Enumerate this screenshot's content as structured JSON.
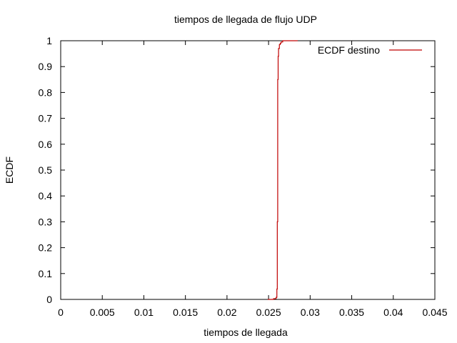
{
  "chart_data": {
    "type": "line",
    "title": "tiempos de llegada de flujo UDP",
    "xlabel": "tiempos de llegada",
    "ylabel": "ECDF",
    "xlim": [
      0,
      0.045
    ],
    "ylim": [
      0,
      1
    ],
    "xticks": [
      "0",
      "0.005",
      "0.01",
      "0.015",
      "0.02",
      "0.025",
      "0.03",
      "0.035",
      "0.04",
      "0.045"
    ],
    "xtick_values": [
      0,
      0.005,
      0.01,
      0.015,
      0.02,
      0.025,
      0.03,
      0.035,
      0.04,
      0.045
    ],
    "yticks": [
      "0",
      "0.1",
      "0.2",
      "0.3",
      "0.4",
      "0.5",
      "0.6",
      "0.7",
      "0.8",
      "0.9",
      "1"
    ],
    "ytick_values": [
      0,
      0.1,
      0.2,
      0.3,
      0.4,
      0.5,
      0.6,
      0.7,
      0.8,
      0.9,
      1
    ],
    "grid": false,
    "legend_position": "top-right",
    "series": [
      {
        "name": "ECDF destino",
        "color": "#c00000",
        "x": [
          0.0249,
          0.0256,
          0.0259,
          0.026,
          0.026,
          0.02605,
          0.02605,
          0.0261,
          0.0261,
          0.02615,
          0.02615,
          0.0262,
          0.0262,
          0.0263,
          0.0263,
          0.0264,
          0.0264,
          0.0265,
          0.0265,
          0.0267,
          0.0267,
          0.0285
        ],
        "y": [
          0.0,
          0.003,
          0.008,
          0.015,
          0.04,
          0.05,
          0.3,
          0.6,
          0.85,
          0.9,
          0.94,
          0.94,
          0.97,
          0.97,
          0.985,
          0.985,
          0.99,
          0.99,
          0.995,
          0.995,
          1.0,
          1.0
        ]
      }
    ]
  }
}
